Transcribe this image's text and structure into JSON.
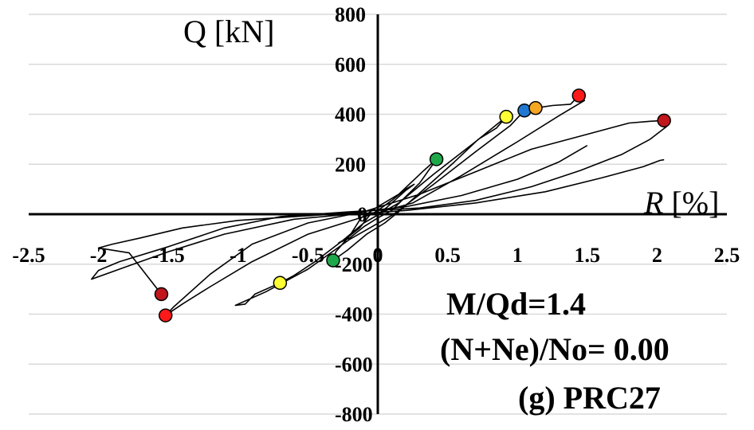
{
  "chart_data": {
    "type": "line",
    "xlabel_italic": "R",
    "xlabel_unit": "[%]",
    "ylabel": "Q [kN]",
    "xlim": [
      -2.5,
      2.5
    ],
    "ylim": [
      -800,
      800
    ],
    "x_ticks": [
      -2.5,
      -2,
      -1.5,
      -1,
      -0.5,
      0,
      0.5,
      1,
      1.5,
      2,
      2.5
    ],
    "x_tick_labels": [
      "-2.5",
      "-2",
      "-1.5",
      "-1",
      "-0.5",
      "0",
      "0.5",
      "1",
      "1.5",
      "2",
      "2.5"
    ],
    "y_ticks": [
      -800,
      -600,
      -400,
      -200,
      0,
      200,
      400,
      600,
      800
    ],
    "y_tick_labels": [
      "-800",
      "-600",
      "-400",
      "-200",
      "0",
      "200",
      "400",
      "600",
      "800"
    ],
    "grid": true,
    "annotations": [
      "M/Qd=1.4",
      "(N+Ne)/No= 0.00",
      "(g) PRC27"
    ],
    "markers": [
      {
        "x": 0.42,
        "y": 220,
        "color": "#1fa84a"
      },
      {
        "x": -0.32,
        "y": -185,
        "color": "#1fa84a"
      },
      {
        "x": 0.92,
        "y": 390,
        "color": "#ffff33"
      },
      {
        "x": -0.7,
        "y": -275,
        "color": "#ffff33"
      },
      {
        "x": 1.05,
        "y": 415,
        "color": "#1f78d1"
      },
      {
        "x": 1.13,
        "y": 425,
        "color": "#f5a623"
      },
      {
        "x": 1.44,
        "y": 475,
        "color": "#ff1a1a"
      },
      {
        "x": -1.52,
        "y": -405,
        "color": "#ff1a1a"
      },
      {
        "x": 2.05,
        "y": 375,
        "color": "#c0161c"
      },
      {
        "x": -1.55,
        "y": -320,
        "color": "#c0161c"
      }
    ],
    "series": [
      {
        "values": [
          [
            0,
            0
          ],
          [
            0.06,
            25
          ],
          [
            0.13,
            60
          ],
          [
            0.2,
            95
          ],
          [
            0.26,
            120
          ],
          [
            0.2,
            100
          ],
          [
            0.1,
            55
          ],
          [
            0,
            15
          ],
          [
            -0.06,
            -5
          ],
          [
            -0.13,
            -55
          ],
          [
            -0.22,
            -95
          ],
          [
            -0.28,
            -115
          ],
          [
            -0.2,
            -95
          ],
          [
            -0.1,
            -50
          ],
          [
            0,
            -15
          ],
          [
            0.1,
            15
          ],
          [
            0.2,
            70
          ],
          [
            0.3,
            125
          ],
          [
            0.42,
            220
          ],
          [
            0.33,
            175
          ],
          [
            0.15,
            80
          ],
          [
            0,
            30
          ],
          [
            -0.12,
            -15
          ],
          [
            -0.2,
            -85
          ],
          [
            -0.3,
            -150
          ],
          [
            -0.32,
            -185
          ],
          [
            -0.22,
            -145
          ],
          [
            -0.08,
            -80
          ],
          [
            0.05,
            -35
          ],
          [
            0.15,
            10
          ],
          [
            0.35,
            110
          ],
          [
            0.55,
            210
          ],
          [
            0.72,
            300
          ],
          [
            0.85,
            345
          ],
          [
            0.92,
            390
          ],
          [
            0.7,
            290
          ],
          [
            0.4,
            160
          ],
          [
            0.15,
            45
          ],
          [
            -0.1,
            -35
          ],
          [
            -0.25,
            -105
          ],
          [
            -0.45,
            -190
          ],
          [
            -0.6,
            -245
          ],
          [
            -0.7,
            -275
          ],
          [
            -0.88,
            -320
          ],
          [
            -0.95,
            -360
          ],
          [
            -1.02,
            -365
          ],
          [
            -0.8,
            -310
          ],
          [
            -0.5,
            -220
          ],
          [
            -0.2,
            -100
          ],
          [
            0.1,
            -5
          ],
          [
            0.4,
            120
          ],
          [
            0.7,
            250
          ],
          [
            0.95,
            355
          ],
          [
            1.05,
            415
          ],
          [
            1.13,
            425
          ],
          [
            1.25,
            435
          ],
          [
            1.38,
            440
          ],
          [
            1.44,
            475
          ],
          [
            1.48,
            455
          ],
          [
            1.3,
            395
          ],
          [
            1.0,
            290
          ],
          [
            0.6,
            155
          ],
          [
            0.25,
            45
          ],
          [
            -0.1,
            -10
          ],
          [
            -0.5,
            -80
          ],
          [
            -0.9,
            -190
          ],
          [
            -1.2,
            -290
          ],
          [
            -1.4,
            -360
          ],
          [
            -1.52,
            -405
          ],
          [
            -1.46,
            -370
          ],
          [
            -1.2,
            -240
          ],
          [
            -0.9,
            -120
          ],
          [
            -0.5,
            -35
          ],
          [
            -0.1,
            10
          ],
          [
            0.3,
            80
          ],
          [
            0.7,
            170
          ],
          [
            1.1,
            260
          ],
          [
            1.5,
            320
          ],
          [
            1.8,
            365
          ],
          [
            1.95,
            372
          ],
          [
            2.05,
            375
          ],
          [
            2.07,
            352
          ],
          [
            1.95,
            300
          ],
          [
            1.75,
            240
          ],
          [
            1.45,
            175
          ],
          [
            1.1,
            110
          ],
          [
            0.7,
            55
          ],
          [
            0.3,
            25
          ],
          [
            -0.2,
            10
          ],
          [
            -0.7,
            -10
          ],
          [
            -1.1,
            -55
          ],
          [
            -1.5,
            -130
          ],
          [
            -1.85,
            -190
          ],
          [
            -2.0,
            -225
          ],
          [
            -2.05,
            -260
          ],
          [
            -1.8,
            -210
          ],
          [
            -1.5,
            -150
          ],
          [
            -1.1,
            -80
          ],
          [
            -0.6,
            -20
          ],
          [
            -0.2,
            0
          ],
          [
            0.2,
            15
          ],
          [
            0.7,
            45
          ],
          [
            1.2,
            90
          ],
          [
            1.6,
            145
          ],
          [
            1.9,
            190
          ],
          [
            2.02,
            215
          ],
          [
            2.05,
            218
          ]
        ]
      },
      {
        "values": [
          [
            -1.55,
            -320
          ],
          [
            -1.78,
            -155
          ],
          [
            -2.0,
            -135
          ],
          [
            -1.9,
            -120
          ],
          [
            -1.7,
            -95
          ],
          [
            -1.4,
            -55
          ],
          [
            -1.0,
            -25
          ],
          [
            -0.6,
            -10
          ],
          [
            -0.2,
            5
          ],
          [
            0.2,
            30
          ],
          [
            0.6,
            75
          ],
          [
            1.0,
            140
          ],
          [
            1.3,
            210
          ],
          [
            1.5,
            275
          ]
        ]
      }
    ]
  }
}
